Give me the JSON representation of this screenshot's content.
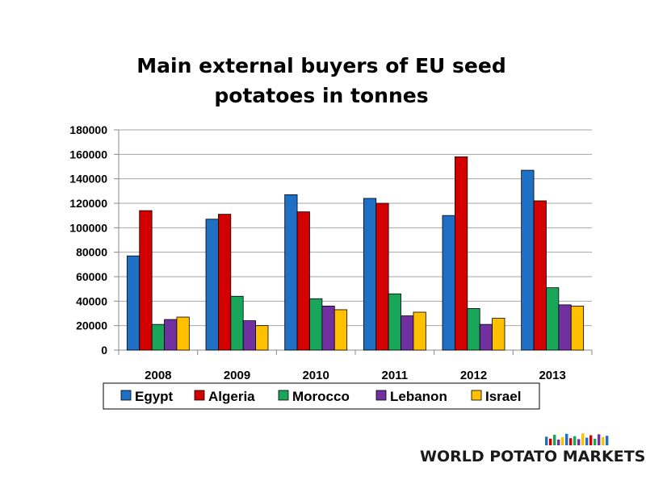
{
  "chart_data": {
    "type": "bar",
    "title": "Main external buyers of EU seed potatoes in tonnes",
    "title_lines": [
      "Main external buyers of EU seed",
      "potatoes in tonnes"
    ],
    "xlabel": "",
    "ylabel": "",
    "categories": [
      "2008",
      "2009",
      "2010",
      "2011",
      "2012",
      "2013"
    ],
    "ylim": [
      0,
      180000
    ],
    "yticks": [
      0,
      20000,
      40000,
      60000,
      80000,
      100000,
      120000,
      140000,
      160000,
      180000
    ],
    "grid": true,
    "legend_position": "bottom",
    "series": [
      {
        "name": "Egypt",
        "color": "#1f6fc5",
        "values": [
          77000,
          107000,
          127000,
          124000,
          110000,
          147000
        ]
      },
      {
        "name": "Algeria",
        "color": "#d40000",
        "values": [
          114000,
          111000,
          113000,
          120000,
          158000,
          122000
        ]
      },
      {
        "name": "Morocco",
        "color": "#1aa65a",
        "values": [
          21000,
          44000,
          42000,
          46000,
          34000,
          51000
        ]
      },
      {
        "name": "Lebanon",
        "color": "#7030a0",
        "values": [
          25000,
          24000,
          36000,
          28000,
          21000,
          37000
        ]
      },
      {
        "name": "Israel",
        "color": "#ffc000",
        "values": [
          27000,
          20000,
          33000,
          31000,
          26000,
          36000
        ]
      }
    ]
  },
  "logo": {
    "text": "WORLD POTATO MARKETS",
    "bar_colors": [
      "#1f6fc5",
      "#d40000",
      "#1aa65a",
      "#7030a0",
      "#ffc000",
      "#1f6fc5",
      "#d40000",
      "#1aa65a",
      "#7030a0",
      "#ffc000",
      "#1f6fc5",
      "#d40000",
      "#1aa65a",
      "#7030a0",
      "#ffc000",
      "#1f6fc5"
    ],
    "bar_levels": [
      0.55,
      0.35,
      0.75,
      0.25,
      0.5,
      0.85,
      0.4,
      0.6,
      0.3,
      0.9,
      0.45,
      0.7,
      0.35,
      0.8,
      0.5,
      0.65
    ]
  }
}
